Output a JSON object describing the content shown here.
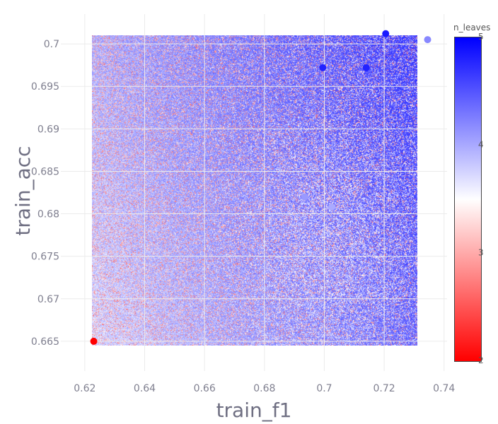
{
  "chart_data": {
    "type": "scatter",
    "xlabel": "train_f1",
    "ylabel": "train_acc",
    "xlim": [
      0.612,
      0.741
    ],
    "ylim": [
      0.6615,
      0.7035
    ],
    "x_ticks": [
      "0.62",
      "0.64",
      "0.66",
      "0.68",
      "0.7",
      "0.72",
      "0.74"
    ],
    "y_ticks": [
      "0.665",
      "0.67",
      "0.675",
      "0.68",
      "0.685",
      "0.69",
      "0.695",
      "0.7"
    ],
    "grid": true,
    "colorbar": {
      "title": "n_leaves",
      "range": [
        2,
        5
      ],
      "ticks": [
        "2",
        "3",
        "4",
        "5"
      ],
      "colorscale": [
        "#ff0000",
        "#ffffff",
        "#0000ff"
      ]
    },
    "points": [
      {
        "x": 0.623,
        "y": 0.665,
        "n_leaves": 2
      },
      {
        "x": 0.6935,
        "y": 0.682,
        "n_leaves": 4.1
      },
      {
        "x": 0.7025,
        "y": 0.6808,
        "n_leaves": 4.0
      },
      {
        "x": 0.6995,
        "y": 0.6972,
        "n_leaves": 4.8
      },
      {
        "x": 0.714,
        "y": 0.6972,
        "n_leaves": 4.8
      },
      {
        "x": 0.7205,
        "y": 0.7012,
        "n_leaves": 4.85
      },
      {
        "x": 0.7345,
        "y": 0.7005,
        "n_leaves": 4.2
      }
    ]
  }
}
